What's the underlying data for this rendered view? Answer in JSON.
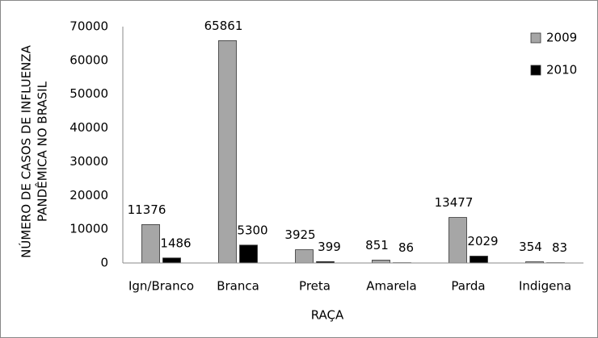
{
  "chart_data": {
    "type": "bar",
    "y_label": [
      "NÚMERO DE CASOS DE INFLUENZA",
      "PANDÊMICA NO BRASIL"
    ],
    "x_label": "RAÇA",
    "categories": [
      "Ign/Branco",
      "Branca",
      "Preta",
      "Amarela",
      "Parda",
      "Indigena"
    ],
    "series": [
      {
        "name": "2009",
        "color": "#a6a6a6",
        "values": [
          11376,
          65861,
          3925,
          851,
          13477,
          354
        ]
      },
      {
        "name": "2010",
        "color": "#000000",
        "values": [
          1486,
          5300,
          399,
          86,
          2029,
          83
        ]
      }
    ],
    "ylim": [
      0,
      70000
    ],
    "yticks": [
      0,
      10000,
      20000,
      30000,
      40000,
      50000,
      60000,
      70000
    ],
    "legend": "top-right",
    "grid": false
  }
}
